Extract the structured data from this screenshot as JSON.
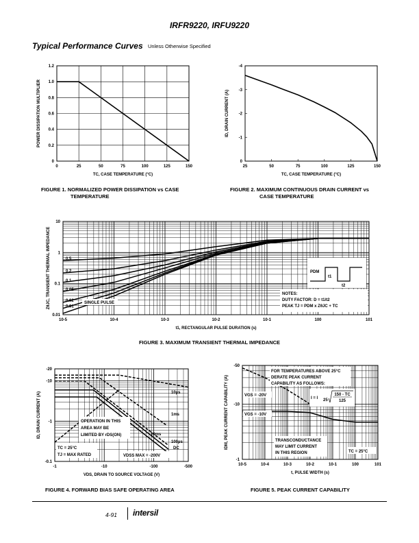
{
  "header": {
    "title": "IRFR9220, IRFU9220"
  },
  "section": {
    "title": "Typical Performance Curves",
    "subtitle": "Unless Otherwise Specified"
  },
  "figures": {
    "fig1": {
      "caption_line1": "FIGURE 1.  NORMALIZED POWER DISSIPATION vs CASE",
      "caption_line2": "TEMPERATURE"
    },
    "fig2": {
      "caption_line1": "FIGURE 2.  MAXIMUM CONTINUOUS DRAIN CURRENT vs",
      "caption_line2": "CASE TEMPERATURE"
    },
    "fig3": {
      "caption": "FIGURE 3.  MAXIMUM TRANSIENT THERMAL IMPEDANCE"
    },
    "fig4": {
      "caption": "FIGURE 4.  FORWARD BIAS SAFE OPERATING AREA"
    },
    "fig5": {
      "caption": "FIGURE 5.  PEAK CURRENT CAPABILITY"
    }
  },
  "footer": {
    "page": "4-91",
    "logo": "intersil"
  },
  "chart_data": [
    {
      "id": "fig1",
      "type": "line",
      "xlabel": "TC, CASE TEMPERATURE (°C)",
      "ylabel": "POWER DISSIPATION MULTIPLIER",
      "xticks": [
        "0",
        "25",
        "50",
        "75",
        "100",
        "125",
        "150"
      ],
      "yticks": [
        "0",
        "0.2",
        "0.4",
        "0.6",
        "0.8",
        "1.0",
        "1.2"
      ],
      "xlim": [
        0,
        150
      ],
      "ylim": [
        0,
        1.2
      ],
      "grid": true,
      "series": [
        {
          "x": [
            0,
            25,
            150
          ],
          "y": [
            1.0,
            1.0,
            0
          ]
        }
      ]
    },
    {
      "id": "fig2",
      "type": "line",
      "xlabel": "TC, CASE TEMPERATURE (°C)",
      "ylabel": "ID, DRAIN CURRENT (A)",
      "xticks": [
        "25",
        "50",
        "75",
        "100",
        "125",
        "150"
      ],
      "yticks": [
        "0",
        "-1",
        "-2",
        "-3",
        "-4"
      ],
      "xlim": [
        25,
        150
      ],
      "ylim": [
        0,
        -4
      ],
      "grid": false,
      "series": [
        {
          "x": [
            25,
            40,
            50,
            60,
            75,
            90,
            100,
            110,
            125,
            135,
            140,
            145,
            150
          ],
          "y": [
            -3.6,
            -3.36,
            -3.2,
            -3.03,
            -2.78,
            -2.49,
            -2.27,
            -2.04,
            -1.61,
            -1.25,
            -1.02,
            -0.72,
            0
          ]
        }
      ]
    },
    {
      "id": "fig3",
      "type": "line",
      "xscale": "log",
      "yscale": "log",
      "xlabel": "t1, RECTANGULAR PULSE DURATION (s)",
      "ylabel": "ZθJC, TRANSIENT THERMAL IMPEDANCE",
      "xticks": [
        "10-5",
        "10-4",
        "10-3",
        "10-2",
        "10-1",
        "100",
        "101"
      ],
      "yticks": [
        "10",
        "1",
        "0.1",
        "0.01"
      ],
      "xlim": [
        1e-05,
        10
      ],
      "ylim": [
        0.01,
        10
      ],
      "grid": true,
      "duty_labels": [
        "0.5",
        "0.2",
        "0.1",
        "0.05",
        "0.02",
        "0.01",
        "SINGLE PULSE"
      ],
      "series": [
        {
          "name": "0.5",
          "x": [
            1e-05,
            0.0001,
            0.001,
            0.01,
            0.1,
            1,
            10
          ],
          "y": [
            0.55,
            0.66,
            0.9,
            1.55,
            2.5,
            2.85,
            2.9
          ]
        },
        {
          "name": "0.2",
          "x": [
            1e-05,
            0.0001,
            0.001,
            0.01,
            0.1,
            1,
            10
          ],
          "y": [
            0.22,
            0.3,
            0.55,
            1.2,
            2.3,
            2.85,
            2.9
          ]
        },
        {
          "name": "0.1",
          "x": [
            1e-05,
            0.0001,
            0.001,
            0.01,
            0.1,
            1,
            10
          ],
          "y": [
            0.11,
            0.18,
            0.4,
            1.05,
            2.2,
            2.85,
            2.9
          ]
        },
        {
          "name": "0.05",
          "x": [
            1e-05,
            0.0001,
            0.001,
            0.01,
            0.1,
            1,
            10
          ],
          "y": [
            0.056,
            0.11,
            0.32,
            0.95,
            2.1,
            2.85,
            2.9
          ]
        },
        {
          "name": "0.02",
          "x": [
            1e-05,
            0.0001,
            0.001,
            0.01,
            0.1,
            1,
            10
          ],
          "y": [
            0.025,
            0.065,
            0.25,
            0.88,
            2.05,
            2.85,
            2.9
          ]
        },
        {
          "name": "0.01",
          "x": [
            1e-05,
            0.0001,
            0.001,
            0.01,
            0.1,
            1,
            10
          ],
          "y": [
            0.016,
            0.05,
            0.22,
            0.85,
            2.0,
            2.85,
            2.9
          ]
        },
        {
          "name": "SINGLE PULSE",
          "x": [
            1e-05,
            0.0001,
            0.001,
            0.01,
            0.1,
            1,
            10
          ],
          "y": [
            0.011,
            0.04,
            0.2,
            0.82,
            2.0,
            2.85,
            2.9
          ]
        }
      ],
      "notes": {
        "line1": "NOTES:",
        "line2": "DUTY FACTOR: D = t1/t2",
        "line3": "PEAK TJ = PDM x ZθJC + TC"
      },
      "inset": {
        "pdm": "PDM",
        "t1": "t1",
        "t2": "t2"
      }
    },
    {
      "id": "fig4",
      "type": "line",
      "xscale": "log",
      "yscale": "log",
      "xlabel": "VDS, DRAIN TO SOURCE VOLTAGE (V)",
      "ylabel": "ID, DRAIN CURRENT (A)",
      "xticks": [
        "-1",
        "-10",
        "-100",
        "-500"
      ],
      "yticks": [
        "-20",
        "-10",
        "-1",
        "-0.1"
      ],
      "xlim": [
        -1,
        -500
      ],
      "ylim": [
        -0.1,
        -20
      ],
      "grid": true,
      "series": [
        {
          "name": "10µs",
          "style": "dashed",
          "x": [
            -1,
            -20,
            -500
          ],
          "y": [
            -14,
            -14,
            -7
          ]
        },
        {
          "name": "100µs",
          "style": "dashed",
          "x": [
            -1,
            -8,
            -180
          ],
          "y": [
            -12,
            -12,
            -0.8
          ]
        },
        {
          "name": "1ms",
          "style": "dashed",
          "x": [
            -1,
            -4,
            -200
          ],
          "y": [
            -10,
            -10,
            -0.25
          ]
        },
        {
          "name": "10ms",
          "style": "solid",
          "x": [
            -1,
            -6,
            -200
          ],
          "y": [
            -6,
            -6,
            -0.2
          ]
        },
        {
          "name": "DC",
          "style": "solid",
          "x": [
            -1,
            -7,
            -200
          ],
          "y": [
            -4,
            -4,
            -0.16
          ]
        },
        {
          "name": "RDS(ON) limit",
          "style": "dashed",
          "x": [
            -1,
            -20
          ],
          "y": [
            -0.3,
            -6
          ]
        }
      ],
      "annotations": {
        "op_area_line1": "OPERATION IN THIS",
        "op_area_line2": "AREA MAY BE",
        "op_area_line3": "LIMITED BY rDS(ON)",
        "tc": "TC = 25°C",
        "tj": "TJ = MAX RATED",
        "vdss": "VDSS MAX = -200V",
        "l_10us": "10µs",
        "l_100us": "100µs",
        "l_1ms": "1ms",
        "l_10ms": "10ms",
        "l_dc": "DC"
      }
    },
    {
      "id": "fig5",
      "type": "line",
      "xscale": "log",
      "yscale": "log",
      "xlabel": "t, PULSE WIDTH (s)",
      "ylabel": "IDM, PEAK CURRENT CAPABILITY (A)",
      "xticks": [
        "10-5",
        "10-4",
        "10-3",
        "10-2",
        "10-1",
        "100",
        "101"
      ],
      "yticks": [
        "-50",
        "-10",
        "-1"
      ],
      "xlim": [
        1e-05,
        10
      ],
      "ylim": [
        -1,
        -50
      ],
      "grid": true,
      "series": [
        {
          "name": "VGS = -20V",
          "style": "dashed",
          "x": [
            1e-05,
            0.0001,
            0.001,
            0.01
          ],
          "y": [
            -45,
            -30,
            -18,
            -10
          ]
        },
        {
          "name": "VGS = -10V",
          "style": "solid",
          "x": [
            1e-05,
            0.001,
            0.01,
            0.1,
            1,
            10
          ],
          "y": [
            -7.5,
            -7.4,
            -7,
            -5.3,
            -4.7,
            -4.7
          ]
        }
      ],
      "annotations": {
        "temp_note_line1": "FOR TEMPERATURES ABOVE 25°C",
        "temp_note_line2": "DERATE PEAK CURRENT",
        "temp_note_line3": "CAPABILITY AS FOLLOWS:",
        "formula_lhs": "I = I",
        "formula_sub": "25",
        "formula_num": "150 - TC",
        "formula_den": "125",
        "vgs20": "VGS = -20V",
        "vgs10": "VGS = -10V",
        "trans_line1": "TRANSCONDUCTANCE",
        "trans_line2": "MAY LIMIT CURRENT",
        "trans_line3": "IN THIS REGION",
        "tc": "TC = 25°C"
      }
    }
  ]
}
